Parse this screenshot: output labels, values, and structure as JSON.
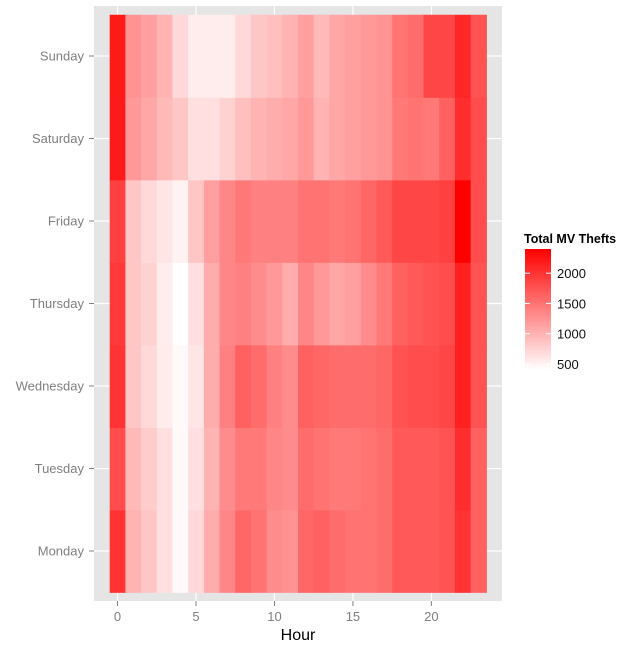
{
  "chart_data": {
    "type": "heatmap",
    "title": "",
    "xlabel": "Hour",
    "ylabel": "",
    "x": [
      0,
      1,
      2,
      3,
      4,
      5,
      6,
      7,
      8,
      9,
      10,
      11,
      12,
      13,
      14,
      15,
      16,
      17,
      18,
      19,
      20,
      21,
      22,
      23
    ],
    "x_ticks": [
      0,
      5,
      10,
      15,
      20
    ],
    "xlim": [
      -1.5,
      24.5
    ],
    "y": [
      "Monday",
      "Tuesday",
      "Wednesday",
      "Thursday",
      "Friday",
      "Saturday",
      "Sunday"
    ],
    "grid": true,
    "legend": {
      "title": "Total MV Thefts",
      "ticks": [
        500,
        1000,
        1500,
        2000
      ],
      "range": [
        400,
        2400
      ],
      "low_color": "#ffffff",
      "high_color": "#ff0000",
      "placement": "right"
    },
    "z": [
      [
        2000,
        1000,
        850,
        650,
        450,
        700,
        1050,
        1350,
        1600,
        1500,
        1300,
        1250,
        1600,
        1650,
        1550,
        1500,
        1500,
        1550,
        1700,
        1700,
        1700,
        1750,
        2000,
        1650
      ],
      [
        1800,
        950,
        800,
        650,
        450,
        650,
        1000,
        1300,
        1450,
        1450,
        1350,
        1300,
        1550,
        1500,
        1450,
        1450,
        1500,
        1550,
        1700,
        1700,
        1700,
        1750,
        2050,
        1650
      ],
      [
        2000,
        850,
        700,
        550,
        450,
        600,
        1050,
        1400,
        1650,
        1550,
        1400,
        1300,
        1650,
        1600,
        1550,
        1550,
        1550,
        1600,
        1750,
        1800,
        1800,
        1850,
        2150,
        1750
      ],
      [
        1950,
        850,
        750,
        550,
        400,
        650,
        1050,
        1350,
        1400,
        1300,
        1200,
        1050,
        1350,
        1200,
        1100,
        1150,
        1300,
        1450,
        1650,
        1700,
        1750,
        1800,
        2150,
        1750
      ],
      [
        1900,
        850,
        700,
        600,
        500,
        850,
        1150,
        1350,
        1450,
        1400,
        1400,
        1400,
        1500,
        1500,
        1450,
        1500,
        1600,
        1700,
        1850,
        1850,
        1850,
        1900,
        2400,
        1800
      ],
      [
        2200,
        1200,
        1100,
        950,
        850,
        650,
        650,
        750,
        900,
        1000,
        1050,
        1100,
        1200,
        1000,
        1100,
        1150,
        1200,
        1250,
        1450,
        1500,
        1450,
        1650,
        2050,
        1800
      ],
      [
        2200,
        1250,
        1150,
        1000,
        700,
        550,
        550,
        550,
        700,
        850,
        900,
        1000,
        1150,
        950,
        1100,
        1150,
        1200,
        1250,
        1500,
        1550,
        1850,
        1850,
        2100,
        1750
      ]
    ]
  }
}
